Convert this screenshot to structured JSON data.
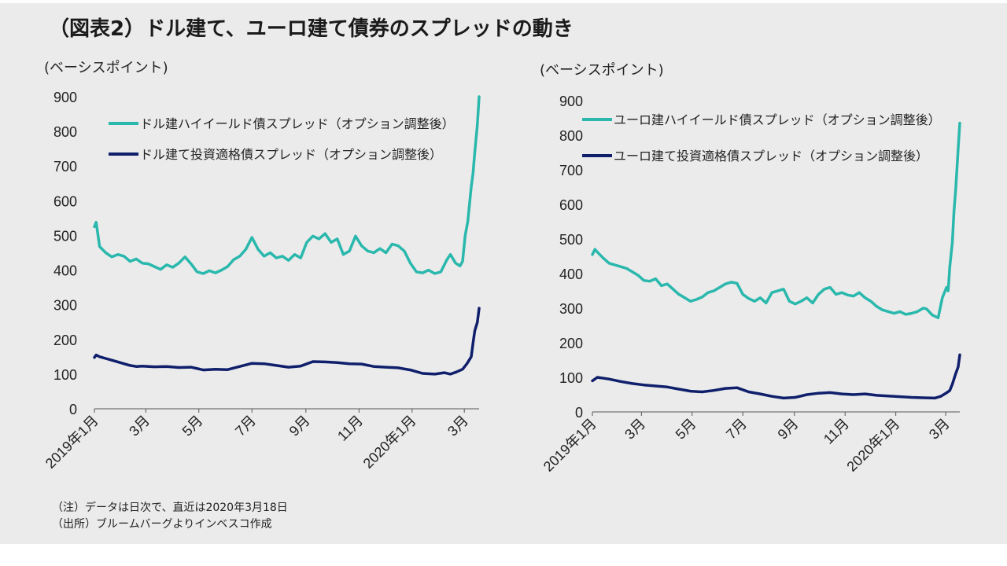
{
  "title": "（図表2）ドル建て、ユーロ建て債券のスプレッドの動き",
  "notes": {
    "note": "（注）データは日次で、直近は2020年3月18日",
    "source": "（出所）ブルームバーグよりインベスコ作成"
  },
  "colors": {
    "high_yield": "#2ab8ad",
    "investment_grade": "#0f1f6b"
  },
  "chart_data": [
    {
      "type": "line",
      "ylabel": "(ベーシスポイント)",
      "ylim": [
        0,
        900
      ],
      "yticks": [
        0,
        100,
        200,
        300,
        400,
        500,
        600,
        700,
        800,
        900
      ],
      "xlim": [
        "2019-01-01",
        "2020-03-18"
      ],
      "xticks": [
        {
          "date": "2019-01-01",
          "label": "2019年1月"
        },
        {
          "date": "2019-03-01",
          "label": "3月"
        },
        {
          "date": "2019-05-01",
          "label": "5月"
        },
        {
          "date": "2019-07-01",
          "label": "7月"
        },
        {
          "date": "2019-09-01",
          "label": "9月"
        },
        {
          "date": "2019-11-01",
          "label": "11月"
        },
        {
          "date": "2020-01-01",
          "label": "2020年1月"
        },
        {
          "date": "2020-03-01",
          "label": "3月"
        }
      ],
      "grid": false,
      "legend": "top-left",
      "series": [
        {
          "name": "ドル建ハイイールド債スプレッド（オプション調整後）",
          "color": "#2ab8ad",
          "points": [
            [
              "2019-01-01",
              525
            ],
            [
              "2019-01-03",
              538
            ],
            [
              "2019-01-07",
              468
            ],
            [
              "2019-01-14",
              450
            ],
            [
              "2019-01-21",
              438
            ],
            [
              "2019-01-28",
              445
            ],
            [
              "2019-02-04",
              440
            ],
            [
              "2019-02-11",
              425
            ],
            [
              "2019-02-18",
              432
            ],
            [
              "2019-02-25",
              420
            ],
            [
              "2019-03-04",
              418
            ],
            [
              "2019-03-11",
              410
            ],
            [
              "2019-03-18",
              402
            ],
            [
              "2019-03-25",
              415
            ],
            [
              "2019-04-01",
              408
            ],
            [
              "2019-04-08",
              420
            ],
            [
              "2019-04-15",
              438
            ],
            [
              "2019-04-22",
              418
            ],
            [
              "2019-04-29",
              395
            ],
            [
              "2019-05-06",
              390
            ],
            [
              "2019-05-13",
              398
            ],
            [
              "2019-05-20",
              392
            ],
            [
              "2019-05-27",
              400
            ],
            [
              "2019-06-03",
              410
            ],
            [
              "2019-06-10",
              430
            ],
            [
              "2019-06-17",
              440
            ],
            [
              "2019-06-24",
              460
            ],
            [
              "2019-07-01",
              494
            ],
            [
              "2019-07-08",
              460
            ],
            [
              "2019-07-15",
              440
            ],
            [
              "2019-07-22",
              450
            ],
            [
              "2019-07-29",
              435
            ],
            [
              "2019-08-05",
              440
            ],
            [
              "2019-08-12",
              428
            ],
            [
              "2019-08-19",
              445
            ],
            [
              "2019-08-26",
              435
            ],
            [
              "2019-09-02",
              480
            ],
            [
              "2019-09-09",
              498
            ],
            [
              "2019-09-16",
              490
            ],
            [
              "2019-09-23",
              505
            ],
            [
              "2019-09-30",
              480
            ],
            [
              "2019-10-07",
              490
            ],
            [
              "2019-10-14",
              445
            ],
            [
              "2019-10-21",
              455
            ],
            [
              "2019-10-28",
              498
            ],
            [
              "2019-11-04",
              470
            ],
            [
              "2019-11-11",
              455
            ],
            [
              "2019-11-18",
              450
            ],
            [
              "2019-11-25",
              462
            ],
            [
              "2019-12-02",
              450
            ],
            [
              "2019-12-09",
              475
            ],
            [
              "2019-12-16",
              470
            ],
            [
              "2019-12-23",
              455
            ],
            [
              "2019-12-30",
              420
            ],
            [
              "2020-01-06",
              395
            ],
            [
              "2020-01-13",
              392
            ],
            [
              "2020-01-20",
              400
            ],
            [
              "2020-01-27",
              390
            ],
            [
              "2020-02-03",
              395
            ],
            [
              "2020-02-10",
              430
            ],
            [
              "2020-02-14",
              445
            ],
            [
              "2020-02-20",
              420
            ],
            [
              "2020-02-25",
              412
            ],
            [
              "2020-02-28",
              425
            ],
            [
              "2020-03-02",
              500
            ],
            [
              "2020-03-05",
              540
            ],
            [
              "2020-03-09",
              640
            ],
            [
              "2020-03-11",
              680
            ],
            [
              "2020-03-13",
              740
            ],
            [
              "2020-03-16",
              820
            ],
            [
              "2020-03-18",
              900
            ]
          ]
        },
        {
          "name": "ドル建て投資適格債スプレッド（オプション調整後）",
          "color": "#0f1f6b",
          "points": [
            [
              "2019-01-01",
              148
            ],
            [
              "2019-01-03",
              155
            ],
            [
              "2019-01-07",
              150
            ],
            [
              "2019-01-14",
              145
            ],
            [
              "2019-01-21",
              140
            ],
            [
              "2019-01-28",
              135
            ],
            [
              "2019-02-04",
              130
            ],
            [
              "2019-02-11",
              125
            ],
            [
              "2019-02-18",
              122
            ],
            [
              "2019-02-25",
              123
            ],
            [
              "2019-03-11",
              121
            ],
            [
              "2019-03-25",
              122
            ],
            [
              "2019-04-08",
              119
            ],
            [
              "2019-04-22",
              120
            ],
            [
              "2019-05-06",
              112
            ],
            [
              "2019-05-20",
              114
            ],
            [
              "2019-06-03",
              113
            ],
            [
              "2019-06-17",
              122
            ],
            [
              "2019-07-01",
              131
            ],
            [
              "2019-07-15",
              130
            ],
            [
              "2019-07-29",
              125
            ],
            [
              "2019-08-12",
              120
            ],
            [
              "2019-08-26",
              123
            ],
            [
              "2019-09-09",
              136
            ],
            [
              "2019-09-23",
              135
            ],
            [
              "2019-10-07",
              133
            ],
            [
              "2019-10-21",
              130
            ],
            [
              "2019-11-04",
              129
            ],
            [
              "2019-11-18",
              122
            ],
            [
              "2019-12-02",
              120
            ],
            [
              "2019-12-16",
              118
            ],
            [
              "2019-12-30",
              112
            ],
            [
              "2020-01-13",
              102
            ],
            [
              "2020-01-27",
              100
            ],
            [
              "2020-02-07",
              104
            ],
            [
              "2020-02-14",
              100
            ],
            [
              "2020-02-21",
              106
            ],
            [
              "2020-02-28",
              114
            ],
            [
              "2020-03-04",
              130
            ],
            [
              "2020-03-09",
              150
            ],
            [
              "2020-03-11",
              190
            ],
            [
              "2020-03-13",
              225
            ],
            [
              "2020-03-16",
              250
            ],
            [
              "2020-03-18",
              290
            ]
          ]
        }
      ]
    },
    {
      "type": "line",
      "ylabel": "(ベーシスポイント)",
      "ylim": [
        0,
        900
      ],
      "yticks": [
        0,
        100,
        200,
        300,
        400,
        500,
        600,
        700,
        800,
        900
      ],
      "xlim": [
        "2019-01-01",
        "2020-03-18"
      ],
      "xticks": [
        {
          "date": "2019-01-01",
          "label": "2019年1月"
        },
        {
          "date": "2019-03-01",
          "label": "3月"
        },
        {
          "date": "2019-05-01",
          "label": "5月"
        },
        {
          "date": "2019-07-01",
          "label": "7月"
        },
        {
          "date": "2019-09-01",
          "label": "9月"
        },
        {
          "date": "2019-11-01",
          "label": "11月"
        },
        {
          "date": "2020-01-01",
          "label": "2020年1月"
        },
        {
          "date": "2020-03-01",
          "label": "3月"
        }
      ],
      "grid": false,
      "legend": "top-left",
      "series": [
        {
          "name": "ユーロ建ハイイールド債スプレッド（オプション調整後）",
          "color": "#2ab8ad",
          "points": [
            [
              "2019-01-01",
              455
            ],
            [
              "2019-01-04",
              470
            ],
            [
              "2019-01-07",
              462
            ],
            [
              "2019-01-14",
              445
            ],
            [
              "2019-01-21",
              430
            ],
            [
              "2019-01-28",
              425
            ],
            [
              "2019-02-04",
              420
            ],
            [
              "2019-02-11",
              415
            ],
            [
              "2019-02-18",
              405
            ],
            [
              "2019-02-25",
              395
            ],
            [
              "2019-03-04",
              380
            ],
            [
              "2019-03-11",
              378
            ],
            [
              "2019-03-18",
              385
            ],
            [
              "2019-03-25",
              365
            ],
            [
              "2019-04-01",
              370
            ],
            [
              "2019-04-08",
              355
            ],
            [
              "2019-04-15",
              340
            ],
            [
              "2019-04-22",
              330
            ],
            [
              "2019-04-29",
              320
            ],
            [
              "2019-05-06",
              325
            ],
            [
              "2019-05-13",
              332
            ],
            [
              "2019-05-20",
              345
            ],
            [
              "2019-05-27",
              350
            ],
            [
              "2019-06-03",
              360
            ],
            [
              "2019-06-10",
              370
            ],
            [
              "2019-06-17",
              375
            ],
            [
              "2019-06-24",
              372
            ],
            [
              "2019-07-01",
              340
            ],
            [
              "2019-07-08",
              328
            ],
            [
              "2019-07-15",
              320
            ],
            [
              "2019-07-22",
              330
            ],
            [
              "2019-07-29",
              315
            ],
            [
              "2019-08-05",
              345
            ],
            [
              "2019-08-12",
              350
            ],
            [
              "2019-08-19",
              355
            ],
            [
              "2019-08-26",
              320
            ],
            [
              "2019-09-02",
              312
            ],
            [
              "2019-09-09",
              320
            ],
            [
              "2019-09-16",
              330
            ],
            [
              "2019-09-23",
              315
            ],
            [
              "2019-09-30",
              340
            ],
            [
              "2019-10-07",
              355
            ],
            [
              "2019-10-14",
              360
            ],
            [
              "2019-10-21",
              340
            ],
            [
              "2019-10-28",
              345
            ],
            [
              "2019-11-04",
              338
            ],
            [
              "2019-11-11",
              335
            ],
            [
              "2019-11-18",
              345
            ],
            [
              "2019-11-25",
              330
            ],
            [
              "2019-12-02",
              320
            ],
            [
              "2019-12-09",
              305
            ],
            [
              "2019-12-16",
              295
            ],
            [
              "2019-12-23",
              290
            ],
            [
              "2019-12-30",
              285
            ],
            [
              "2020-01-06",
              290
            ],
            [
              "2020-01-13",
              282
            ],
            [
              "2020-01-20",
              285
            ],
            [
              "2020-01-27",
              290
            ],
            [
              "2020-02-03",
              300
            ],
            [
              "2020-02-07",
              298
            ],
            [
              "2020-02-14",
              280
            ],
            [
              "2020-02-21",
              272
            ],
            [
              "2020-02-26",
              330
            ],
            [
              "2020-03-02",
              360
            ],
            [
              "2020-03-04",
              350
            ],
            [
              "2020-03-06",
              420
            ],
            [
              "2020-03-09",
              490
            ],
            [
              "2020-03-11",
              580
            ],
            [
              "2020-03-13",
              640
            ],
            [
              "2020-03-16",
              760
            ],
            [
              "2020-03-18",
              835
            ]
          ]
        },
        {
          "name": "ユーロ建て投資適格債スプレッド（オプション調整後）",
          "color": "#0f1f6b",
          "points": [
            [
              "2019-01-01",
              90
            ],
            [
              "2019-01-07",
              100
            ],
            [
              "2019-01-21",
              95
            ],
            [
              "2019-02-04",
              88
            ],
            [
              "2019-02-18",
              82
            ],
            [
              "2019-03-04",
              78
            ],
            [
              "2019-03-18",
              75
            ],
            [
              "2019-04-01",
              72
            ],
            [
              "2019-04-15",
              66
            ],
            [
              "2019-04-29",
              60
            ],
            [
              "2019-05-13",
              58
            ],
            [
              "2019-05-27",
              62
            ],
            [
              "2019-06-10",
              68
            ],
            [
              "2019-06-24",
              70
            ],
            [
              "2019-07-08",
              58
            ],
            [
              "2019-07-22",
              52
            ],
            [
              "2019-08-05",
              45
            ],
            [
              "2019-08-19",
              40
            ],
            [
              "2019-09-02",
              42
            ],
            [
              "2019-09-16",
              50
            ],
            [
              "2019-09-30",
              54
            ],
            [
              "2019-10-14",
              56
            ],
            [
              "2019-10-28",
              52
            ],
            [
              "2019-11-11",
              50
            ],
            [
              "2019-11-25",
              52
            ],
            [
              "2019-12-09",
              48
            ],
            [
              "2019-12-23",
              46
            ],
            [
              "2020-01-06",
              44
            ],
            [
              "2020-01-20",
              42
            ],
            [
              "2020-02-03",
              41
            ],
            [
              "2020-02-17",
              40
            ],
            [
              "2020-02-24",
              45
            ],
            [
              "2020-03-02",
              55
            ],
            [
              "2020-03-06",
              62
            ],
            [
              "2020-03-09",
              80
            ],
            [
              "2020-03-11",
              95
            ],
            [
              "2020-03-13",
              110
            ],
            [
              "2020-03-16",
              130
            ],
            [
              "2020-03-18",
              165
            ]
          ]
        }
      ]
    }
  ]
}
